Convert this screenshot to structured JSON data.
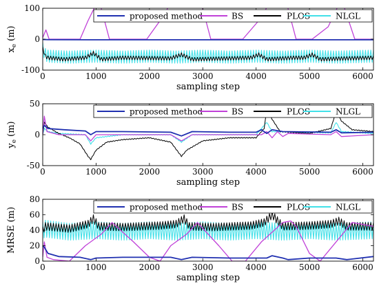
{
  "legend_entries": [
    "proposed method",
    "BS",
    "PLOS",
    "NLGL"
  ],
  "colors": {
    "proposed method": "#1f2fb0",
    "BS": "#c040d8",
    "PLOS": "#000000",
    "NLGL": "#40e0e8"
  },
  "chart_data": [
    {
      "type": "line",
      "ylabel": "x_e (m)",
      "ylabel_main": "x",
      "ylabel_sub": "e",
      "ylabel_unit": " (m)",
      "xlabel": "sampling step",
      "xlim": [
        0,
        6200
      ],
      "ylim": [
        -100,
        100
      ],
      "x_ticks": [
        0,
        1000,
        2000,
        3000,
        4000,
        5000,
        6000
      ],
      "y_ticks": [
        -100,
        0,
        100
      ],
      "legend": "top-right",
      "series": [
        {
          "name": "proposed method",
          "x": [
            0,
            100,
            1000,
            2000,
            3000,
            4000,
            5000,
            6200
          ],
          "y": [
            -1,
            -1.5,
            -2,
            -2,
            -2,
            -2,
            -2,
            -2
          ]
        },
        {
          "name": "BS",
          "x": [
            0,
            60,
            120,
            500,
            700,
            850,
            1050,
            1250,
            1700,
            1950,
            2200,
            2450,
            2650,
            2950,
            3150,
            3450,
            3750,
            4050,
            4300,
            4550,
            4750,
            5050,
            5350,
            5600,
            5850,
            6200
          ],
          "y": [
            5,
            30,
            0,
            0,
            0,
            60,
            130,
            0,
            0,
            0,
            60,
            130,
            130,
            130,
            0,
            0,
            0,
            60,
            130,
            130,
            0,
            0,
            40,
            130,
            0,
            0
          ]
        },
        {
          "name": "PLOS",
          "x": [
            0,
            50,
            100,
            400,
            800,
            950,
            1100,
            1500,
            2400,
            2600,
            2800,
            3500,
            3900,
            4050,
            4200,
            4700,
            4900,
            5050,
            5200,
            5700,
            6200
          ],
          "y": [
            -30,
            -55,
            -60,
            -65,
            -60,
            -45,
            -65,
            -60,
            -62,
            -50,
            -65,
            -62,
            -60,
            -50,
            -65,
            -60,
            -60,
            -50,
            -65,
            -62,
            -60
          ]
        },
        {
          "name": "NLGL",
          "x": [
            0,
            50,
            100,
            500,
            1000,
            1500,
            2000,
            2500,
            3000,
            3500,
            4000,
            4500,
            5000,
            5500,
            6200
          ],
          "y": [
            -30,
            -50,
            -55,
            -58,
            -55,
            -58,
            -55,
            -58,
            -55,
            -58,
            -55,
            -58,
            -55,
            -58,
            -55
          ]
        }
      ]
    },
    {
      "type": "line",
      "ylabel": "y_e (m)",
      "ylabel_main": "y",
      "ylabel_sub": "e",
      "ylabel_unit": " (m)",
      "xlabel": "sampling step",
      "xlim": [
        0,
        6200
      ],
      "ylim": [
        -50,
        50
      ],
      "x_ticks": [
        0,
        1000,
        2000,
        3000,
        4000,
        5000,
        6000
      ],
      "y_ticks": [
        -50,
        0,
        50
      ],
      "legend": "top-right",
      "series": [
        {
          "name": "proposed method",
          "x": [
            0,
            30,
            100,
            400,
            800,
            900,
            1000,
            1500,
            2400,
            2600,
            2800,
            3500,
            4000,
            4100,
            4200,
            4300,
            4500,
            5400,
            5500,
            5600,
            6200
          ],
          "y": [
            10,
            15,
            10,
            8,
            6,
            0,
            5,
            5,
            4,
            -2,
            5,
            4,
            4,
            8,
            2,
            8,
            5,
            4,
            8,
            3,
            4
          ]
        },
        {
          "name": "BS",
          "x": [
            0,
            30,
            80,
            300,
            800,
            900,
            1000,
            1500,
            2400,
            2600,
            2800,
            3500,
            4100,
            4200,
            4300,
            4400,
            4500,
            4600,
            5400,
            5500,
            5600,
            6200
          ],
          "y": [
            0,
            30,
            5,
            0,
            0,
            -10,
            0,
            0,
            0,
            -10,
            0,
            0,
            0,
            5,
            -5,
            5,
            -3,
            2,
            0,
            5,
            -3,
            0
          ]
        },
        {
          "name": "PLOS",
          "x": [
            0,
            30,
            100,
            300,
            500,
            700,
            850,
            900,
            1000,
            1200,
            1500,
            2000,
            2400,
            2600,
            2700,
            3000,
            3500,
            4000,
            4150,
            4200,
            4300,
            4450,
            5000,
            5400,
            5500,
            5600,
            5800,
            6200
          ],
          "y": [
            0,
            20,
            12,
            2,
            -5,
            -15,
            -35,
            -40,
            -25,
            -12,
            -8,
            -5,
            -12,
            -35,
            -25,
            -10,
            -5,
            -5,
            10,
            40,
            25,
            5,
            2,
            10,
            38,
            22,
            8,
            5
          ]
        },
        {
          "name": "NLGL",
          "x": [
            0,
            30,
            100,
            300,
            800,
            900,
            1000,
            1500,
            2400,
            2600,
            2800,
            3500,
            4000,
            4200,
            4300,
            5400,
            5500,
            5600,
            6200
          ],
          "y": [
            0,
            10,
            5,
            2,
            0,
            -15,
            -5,
            0,
            0,
            -12,
            0,
            0,
            0,
            20,
            5,
            3,
            20,
            5,
            2
          ]
        }
      ]
    },
    {
      "type": "line",
      "ylabel": "MRSE (m)",
      "xlabel": "sampling step",
      "xlim": [
        0,
        6200
      ],
      "ylim": [
        0,
        80
      ],
      "x_ticks": [
        0,
        1000,
        2000,
        3000,
        4000,
        5000,
        6000
      ],
      "y_ticks": [
        0,
        20,
        40,
        60,
        80
      ],
      "legend": "top-right",
      "series": [
        {
          "name": "proposed method",
          "x": [
            0,
            30,
            100,
            300,
            700,
            900,
            1000,
            1500,
            2400,
            2600,
            2800,
            3500,
            4200,
            4300,
            4500,
            4600,
            5000,
            5500,
            5700,
            6200
          ],
          "y": [
            20,
            18,
            10,
            6,
            5,
            2,
            4,
            5,
            5,
            2,
            5,
            4,
            4,
            7,
            4,
            2,
            4,
            4,
            2,
            6
          ]
        },
        {
          "name": "BS",
          "x": [
            0,
            30,
            80,
            200,
            500,
            800,
            1100,
            1300,
            1700,
            2000,
            2200,
            2400,
            2700,
            2900,
            3300,
            3550,
            3800,
            4100,
            4500,
            4650,
            4750,
            5000,
            5200,
            5500,
            5800,
            6200
          ],
          "y": [
            5,
            25,
            5,
            2,
            0,
            20,
            35,
            50,
            25,
            5,
            0,
            20,
            35,
            50,
            20,
            0,
            0,
            25,
            50,
            52,
            45,
            10,
            0,
            25,
            50,
            45
          ]
        },
        {
          "name": "PLOS",
          "x": [
            0,
            50,
            500,
            850,
            950,
            1050,
            1500,
            2200,
            2500,
            2650,
            2750,
            3200,
            3900,
            4150,
            4300,
            4500,
            5000,
            5400,
            5550,
            5700,
            6200
          ],
          "y": [
            40,
            45,
            42,
            48,
            55,
            45,
            44,
            46,
            48,
            55,
            45,
            44,
            46,
            50,
            60,
            45,
            46,
            48,
            52,
            45,
            45
          ]
        },
        {
          "name": "NLGL",
          "x": [
            0,
            50,
            500,
            1000,
            1500,
            2000,
            2500,
            3000,
            3500,
            4000,
            4500,
            5000,
            5500,
            6200
          ],
          "y": [
            40,
            42,
            38,
            40,
            38,
            40,
            38,
            40,
            38,
            40,
            38,
            40,
            38,
            40
          ]
        }
      ]
    }
  ]
}
